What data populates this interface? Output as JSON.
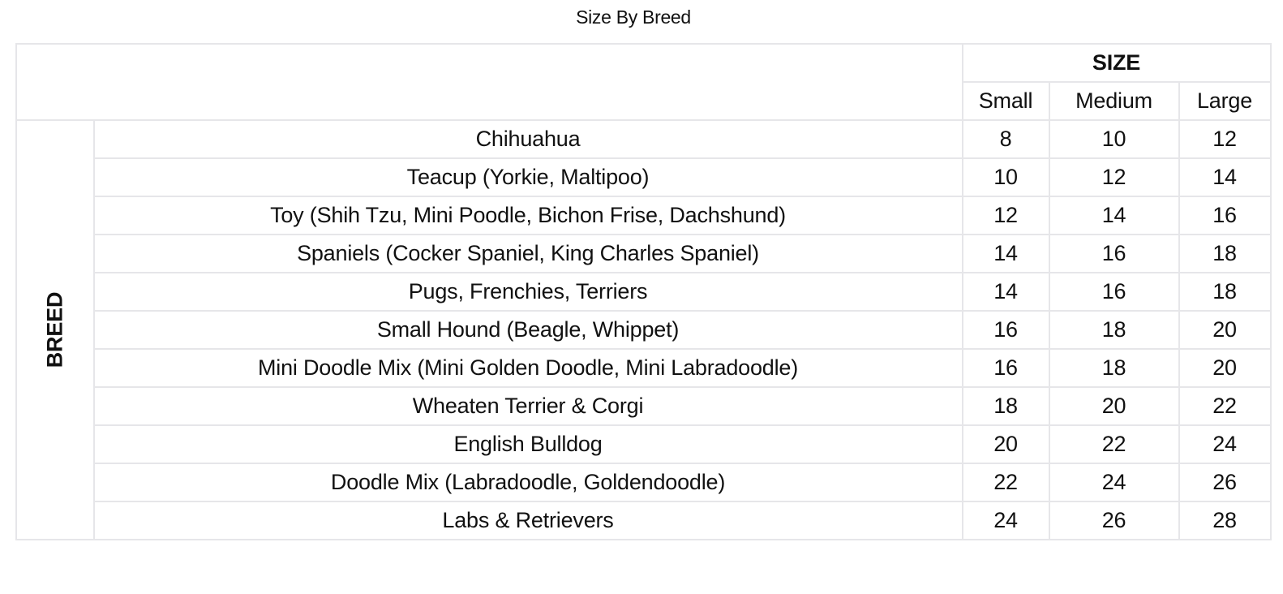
{
  "title": "Size By Breed",
  "column_group": "SIZE",
  "row_group": "BREED",
  "columns": [
    "Small",
    "Medium",
    "Large"
  ],
  "rows": [
    {
      "breed": "Chihuahua",
      "values": [
        "8",
        "10",
        "12"
      ]
    },
    {
      "breed": "Teacup (Yorkie, Maltipoo)",
      "values": [
        "10",
        "12",
        "14"
      ]
    },
    {
      "breed": "Toy (Shih Tzu, Mini Poodle, Bichon Frise, Dachshund)",
      "values": [
        "12",
        "14",
        "16"
      ]
    },
    {
      "breed": "Spaniels (Cocker Spaniel, King Charles Spaniel)",
      "values": [
        "14",
        "16",
        "18"
      ]
    },
    {
      "breed": "Pugs, Frenchies, Terriers",
      "values": [
        "14",
        "16",
        "18"
      ]
    },
    {
      "breed": "Small Hound (Beagle, Whippet)",
      "values": [
        "16",
        "18",
        "20"
      ]
    },
    {
      "breed": "Mini Doodle Mix (Mini Golden Doodle, Mini Labradoodle)",
      "values": [
        "16",
        "18",
        "20"
      ]
    },
    {
      "breed": "Wheaten Terrier & Corgi",
      "values": [
        "18",
        "20",
        "22"
      ]
    },
    {
      "breed": "English Bulldog",
      "values": [
        "20",
        "22",
        "24"
      ]
    },
    {
      "breed": "Doodle Mix (Labradoodle, Goldendoodle)",
      "values": [
        "22",
        "24",
        "26"
      ]
    },
    {
      "breed": "Labs & Retrievers",
      "values": [
        "24",
        "26",
        "28"
      ]
    }
  ],
  "colors": {
    "border": "#e6e6e9",
    "text": "#111111"
  }
}
